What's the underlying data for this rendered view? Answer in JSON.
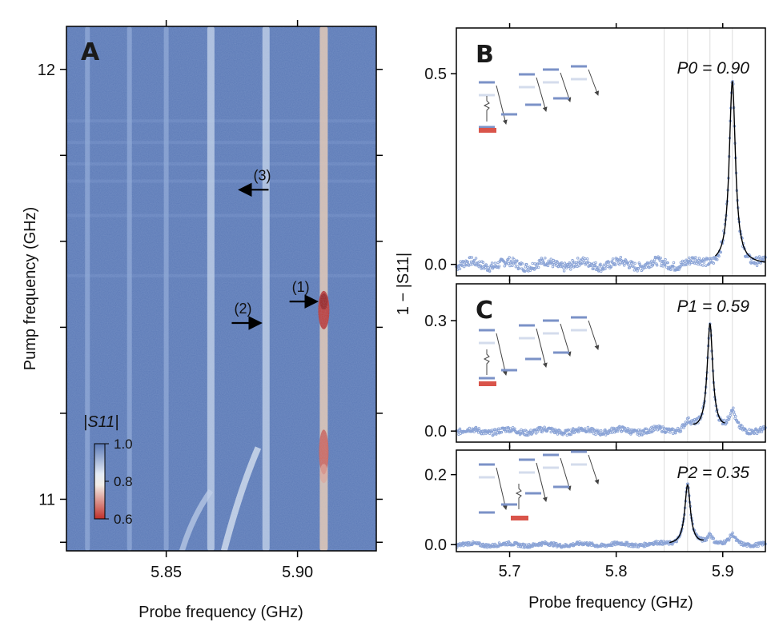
{
  "figure": {
    "panel_labels": [
      "A",
      "B",
      "C"
    ]
  },
  "chart_data": [
    {
      "type": "heatmap",
      "panel": "A",
      "xlabel": "Probe frequency (GHz)",
      "ylabel": "Pump frequency (GHz)",
      "xlim": [
        5.812,
        5.93
      ],
      "ylim": [
        10.88,
        12.1
      ],
      "xticks": [
        5.85,
        5.9
      ],
      "xtick_labels": [
        "5.85",
        "5.90"
      ],
      "yticks": [
        11,
        12
      ],
      "ytick_labels": [
        "11",
        "12"
      ],
      "colorbar": {
        "label": "|S11|",
        "ticks": [
          1.0,
          0.8,
          0.6
        ],
        "tick_labels": [
          "1.0",
          "0.8",
          "0.6"
        ],
        "colormap": [
          "#c0302a",
          "#f2eee8",
          "#dde6f2",
          "#5b79b6"
        ]
      },
      "background_color": "#5b79b6",
      "resonance_lines_probe_GHz": [
        5.82,
        5.836,
        5.85,
        5.867,
        5.888,
        5.91
      ],
      "hot_regions": [
        {
          "probe": 5.91,
          "pump": 11.45,
          "level": "0.6"
        },
        {
          "probe": 5.91,
          "pump": 11.11,
          "level": "0.7"
        }
      ],
      "annotations": [
        {
          "text": "(1)",
          "probe": 5.9,
          "pump": 11.46
        },
        {
          "text": "(2)",
          "probe": 5.878,
          "pump": 11.41
        },
        {
          "text": "(3)",
          "probe": 5.878,
          "pump": 11.72
        }
      ]
    },
    {
      "type": "line",
      "panel": "B",
      "population_label": "P0 = 0.90",
      "xlim": [
        5.65,
        5.94
      ],
      "ylim": [
        -0.03,
        0.62
      ],
      "yticks": [
        0.0,
        0.5
      ],
      "ytick_labels": [
        "0.0",
        "0.5"
      ],
      "peaks": [
        {
          "x": 5.909,
          "height": 0.48,
          "width": 0.0035
        }
      ],
      "fit_range": [
        5.893,
        5.94
      ]
    },
    {
      "type": "line",
      "panel": "C (top)",
      "population_label": "P1 = 0.59",
      "xlim": [
        5.65,
        5.94
      ],
      "ylim": [
        -0.03,
        0.4
      ],
      "yticks": [
        0.0,
        0.3
      ],
      "ytick_labels": [
        "0.0",
        "0.3"
      ],
      "peaks": [
        {
          "x": 5.888,
          "height": 0.29,
          "width": 0.0032
        },
        {
          "x": 5.909,
          "height": 0.05,
          "width": 0.003
        },
        {
          "x": 5.867,
          "height": 0.02,
          "width": 0.004
        }
      ],
      "fit_range": [
        5.872,
        5.902
      ]
    },
    {
      "type": "line",
      "panel": "C (bottom)",
      "population_label": "P2 = 0.35",
      "xlim": [
        5.65,
        5.94
      ],
      "ylim": [
        -0.02,
        0.27
      ],
      "yticks": [
        0.0,
        0.2
      ],
      "ytick_labels": [
        "0.0",
        "0.2"
      ],
      "xticks": [
        5.7,
        5.8,
        5.9
      ],
      "xtick_labels": [
        "5.7",
        "5.8",
        "5.9"
      ],
      "xlabel": "Probe frequency (GHz)",
      "shared_ylabel": "1 − |S11|",
      "peaks": [
        {
          "x": 5.867,
          "height": 0.17,
          "width": 0.0032
        },
        {
          "x": 5.888,
          "height": 0.03,
          "width": 0.003
        },
        {
          "x": 5.909,
          "height": 0.025,
          "width": 0.003
        }
      ],
      "fit_range": [
        5.85,
        5.882
      ]
    }
  ],
  "colors": {
    "data_points": "#8aa3d6",
    "fit_line": "#000000",
    "level_main": "#7b92c7",
    "level_faint": "#d4dcec",
    "ground_state": "#d9544a",
    "arrow": "#444444"
  }
}
